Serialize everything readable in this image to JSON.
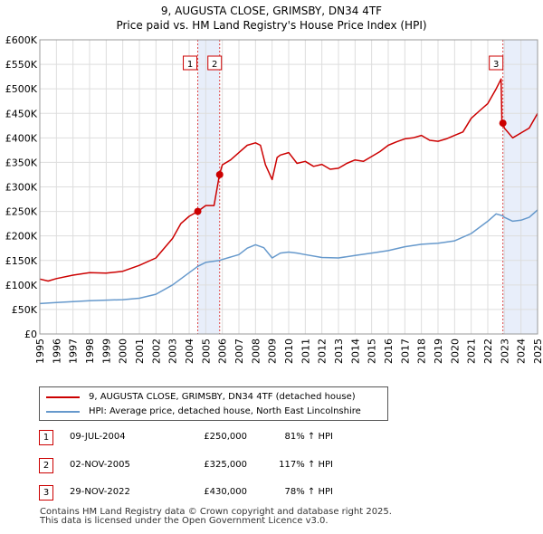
{
  "title_line1": "9, AUGUSTA CLOSE, GRIMSBY, DN34 4TF",
  "title_line2": "Price paid vs. HM Land Registry's House Price Index (HPI)",
  "colors": {
    "property": "#cc0000",
    "hpi": "#6699cc",
    "shade": "#e8eefa",
    "vline": "#dd4444"
  },
  "chart_data": {
    "type": "line",
    "xlim": [
      1995,
      2025
    ],
    "ylim": [
      0,
      600000
    ],
    "yticks": [
      {
        "value": 0,
        "label": "£0"
      },
      {
        "value": 50000,
        "label": "£50K"
      },
      {
        "value": 100000,
        "label": "£100K"
      },
      {
        "value": 150000,
        "label": "£150K"
      },
      {
        "value": 200000,
        "label": "£200K"
      },
      {
        "value": 250000,
        "label": "£250K"
      },
      {
        "value": 300000,
        "label": "£300K"
      },
      {
        "value": 350000,
        "label": "£350K"
      },
      {
        "value": 400000,
        "label": "£400K"
      },
      {
        "value": 450000,
        "label": "£450K"
      },
      {
        "value": 500000,
        "label": "£500K"
      },
      {
        "value": 550000,
        "label": "£550K"
      },
      {
        "value": 600000,
        "label": "£600K"
      }
    ],
    "xticks": [
      "1995",
      "1996",
      "1997",
      "1998",
      "1999",
      "2000",
      "2001",
      "2002",
      "2003",
      "2004",
      "2005",
      "2006",
      "2007",
      "2008",
      "2009",
      "2010",
      "2011",
      "2012",
      "2013",
      "2014",
      "2015",
      "2016",
      "2017",
      "2018",
      "2019",
      "2020",
      "2021",
      "2022",
      "2023",
      "2024",
      "2025"
    ],
    "series": [
      {
        "name": "9, AUGUSTA CLOSE, GRIMSBY, DN34 4TF (detached house)",
        "x": [
          1995,
          1995.5,
          1996,
          1997,
          1998,
          1999,
          2000,
          2001,
          2002,
          2003,
          2003.5,
          2004,
          2004.52,
          2005,
          2005.5,
          2005.83,
          2006,
          2006.5,
          2007,
          2007.5,
          2008,
          2008.3,
          2008.6,
          2009,
          2009.3,
          2009.5,
          2010,
          2010.5,
          2011,
          2011.5,
          2012,
          2012.5,
          2013,
          2013.5,
          2014,
          2014.5,
          2015,
          2015.5,
          2016,
          2016.5,
          2017,
          2017.5,
          2018,
          2018.5,
          2019,
          2019.5,
          2020,
          2020.5,
          2021,
          2021.5,
          2022,
          2022.5,
          2022.8,
          2022.85,
          2022.91,
          2023,
          2023.5,
          2024,
          2024.5,
          2025
        ],
        "values": [
          112000,
          108000,
          113000,
          120000,
          125000,
          124000,
          128000,
          140000,
          155000,
          195000,
          225000,
          240000,
          250000,
          262000,
          262000,
          325000,
          345000,
          355000,
          370000,
          385000,
          390000,
          385000,
          345000,
          315000,
          360000,
          365000,
          370000,
          348000,
          352000,
          342000,
          346000,
          336000,
          338000,
          348000,
          355000,
          352000,
          362000,
          372000,
          385000,
          392000,
          398000,
          400000,
          405000,
          395000,
          393000,
          398000,
          405000,
          412000,
          440000,
          455000,
          470000,
          500000,
          520000,
          430000,
          430000,
          420000,
          400000,
          410000,
          420000,
          450000
        ]
      },
      {
        "name": "HPI: Average price, detached house, North East Lincolnshire",
        "x": [
          1995,
          1996,
          1997,
          1998,
          1999,
          2000,
          2001,
          2002,
          2003,
          2004,
          2004.52,
          2005,
          2005.83,
          2006,
          2007,
          2007.5,
          2008,
          2008.5,
          2009,
          2009.5,
          2010,
          2010.5,
          2011,
          2012,
          2013,
          2014,
          2015,
          2016,
          2017,
          2018,
          2019,
          2020,
          2021,
          2022,
          2022.5,
          2022.91,
          2023,
          2023.5,
          2024,
          2024.5,
          2025
        ],
        "values": [
          62000,
          64000,
          66000,
          68000,
          69000,
          70000,
          73000,
          81000,
          100000,
          125000,
          138000,
          146000,
          150000,
          152000,
          162000,
          175000,
          182000,
          176000,
          155000,
          165000,
          167000,
          165000,
          162000,
          156000,
          155000,
          160000,
          165000,
          170000,
          178000,
          183000,
          185000,
          190000,
          205000,
          230000,
          245000,
          241000,
          238000,
          230000,
          232000,
          238000,
          253000
        ]
      }
    ],
    "sale_points": [
      {
        "label": "1",
        "x": 2004.52,
        "value": 250000
      },
      {
        "label": "2",
        "x": 2005.84,
        "value": 325000
      },
      {
        "label": "3",
        "x": 2022.91,
        "value": 430000
      }
    ],
    "shaded_ranges": [
      [
        2004.52,
        2005.84
      ],
      [
        2022.91,
        2025
      ]
    ]
  },
  "legend": {
    "property": "9, AUGUSTA CLOSE, GRIMSBY, DN34 4TF (detached house)",
    "hpi": "HPI: Average price, detached house, North East Lincolnshire"
  },
  "sales": [
    {
      "num": "1",
      "date": "09-JUL-2004",
      "price": "£250,000",
      "hpi": "81% ↑ HPI"
    },
    {
      "num": "2",
      "date": "02-NOV-2005",
      "price": "£325,000",
      "hpi": "117% ↑ HPI"
    },
    {
      "num": "3",
      "date": "29-NOV-2022",
      "price": "£430,000",
      "hpi": "78% ↑ HPI"
    }
  ],
  "footer_line1": "Contains HM Land Registry data © Crown copyright and database right 2025.",
  "footer_line2": "This data is licensed under the Open Government Licence v3.0."
}
